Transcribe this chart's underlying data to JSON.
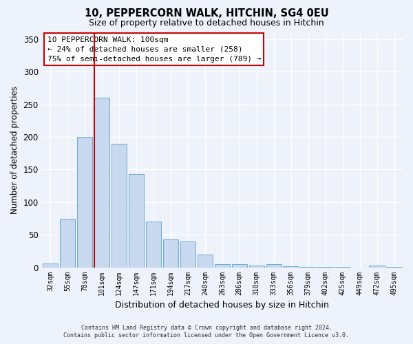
{
  "title": "10, PEPPERCORN WALK, HITCHIN, SG4 0EU",
  "subtitle": "Size of property relative to detached houses in Hitchin",
  "xlabel": "Distribution of detached houses by size in Hitchin",
  "ylabel": "Number of detached properties",
  "bar_color": "#c8d8ee",
  "bar_edge_color": "#6aaad4",
  "background_color": "#eef2fb",
  "grid_color": "#ffffff",
  "categories": [
    "32sqm",
    "55sqm",
    "78sqm",
    "101sqm",
    "124sqm",
    "147sqm",
    "171sqm",
    "194sqm",
    "217sqm",
    "240sqm",
    "263sqm",
    "286sqm",
    "310sqm",
    "333sqm",
    "356sqm",
    "379sqm",
    "402sqm",
    "425sqm",
    "449sqm",
    "472sqm",
    "495sqm"
  ],
  "values": [
    6,
    75,
    200,
    260,
    190,
    143,
    70,
    43,
    40,
    20,
    5,
    5,
    3,
    5,
    2,
    1,
    1,
    1,
    0,
    3,
    1
  ],
  "ylim": [
    0,
    360
  ],
  "yticks": [
    0,
    50,
    100,
    150,
    200,
    250,
    300,
    350
  ],
  "red_line_index": 3,
  "annotation_title": "10 PEPPERCORN WALK: 100sqm",
  "annotation_line1": "← 24% of detached houses are smaller (258)",
  "annotation_line2": "75% of semi-detached houses are larger (789) →",
  "annotation_box_color": "#ffffff",
  "annotation_box_edge_color": "#cc0000",
  "red_line_color": "#cc0000",
  "footer_line1": "Contains HM Land Registry data © Crown copyright and database right 2024.",
  "footer_line2": "Contains public sector information licensed under the Open Government Licence v3.0."
}
